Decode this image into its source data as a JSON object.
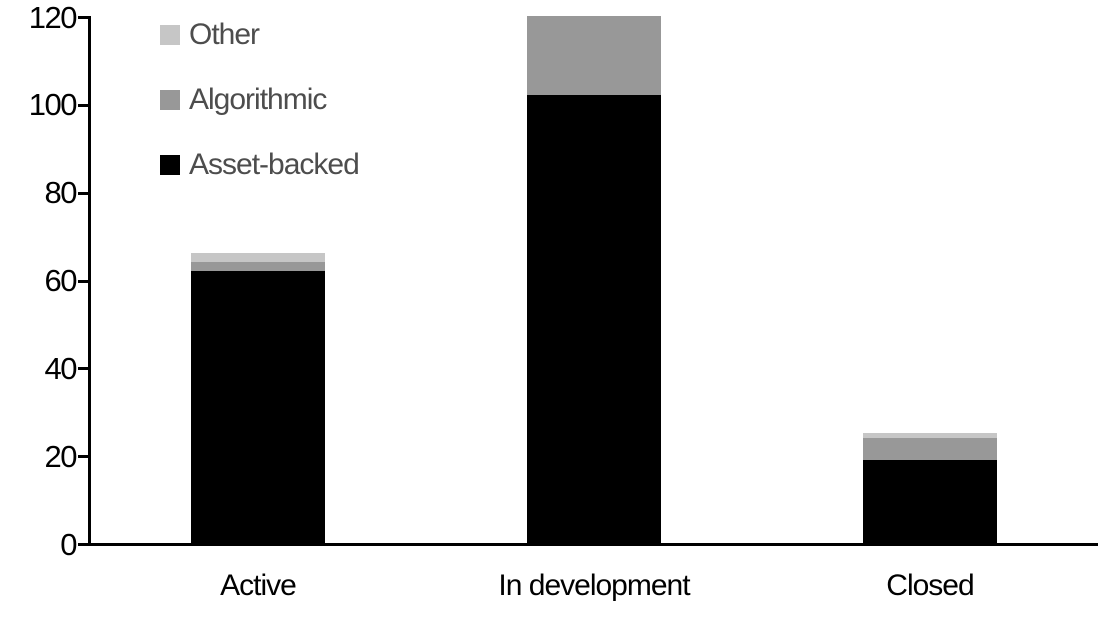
{
  "chart_data": {
    "type": "bar",
    "stacked": true,
    "title": "",
    "xlabel": "",
    "ylabel": "",
    "categories": [
      "Active",
      "In development",
      "Closed"
    ],
    "series": [
      {
        "name": "Asset-backed",
        "color": "#000000",
        "values": [
          62,
          102,
          19
        ]
      },
      {
        "name": "Algorithmic",
        "color": "#989898",
        "values": [
          2,
          18,
          5
        ]
      },
      {
        "name": "Other",
        "color": "#c6c6c6",
        "values": [
          2,
          0,
          1
        ]
      }
    ],
    "ylim": [
      0,
      120
    ],
    "y_ticks": [
      0,
      20,
      40,
      60,
      80,
      100,
      120
    ],
    "grid": false,
    "legend_position": "top-left",
    "legend_order_top_to_bottom": [
      "Other",
      "Algorithmic",
      "Asset-backed"
    ]
  },
  "style": {
    "background": "#ffffff",
    "axis_color": "#000000",
    "tick_label_color": "#000000",
    "category_label_color": "#000000",
    "legend_text_color": "#4d4d4d"
  }
}
